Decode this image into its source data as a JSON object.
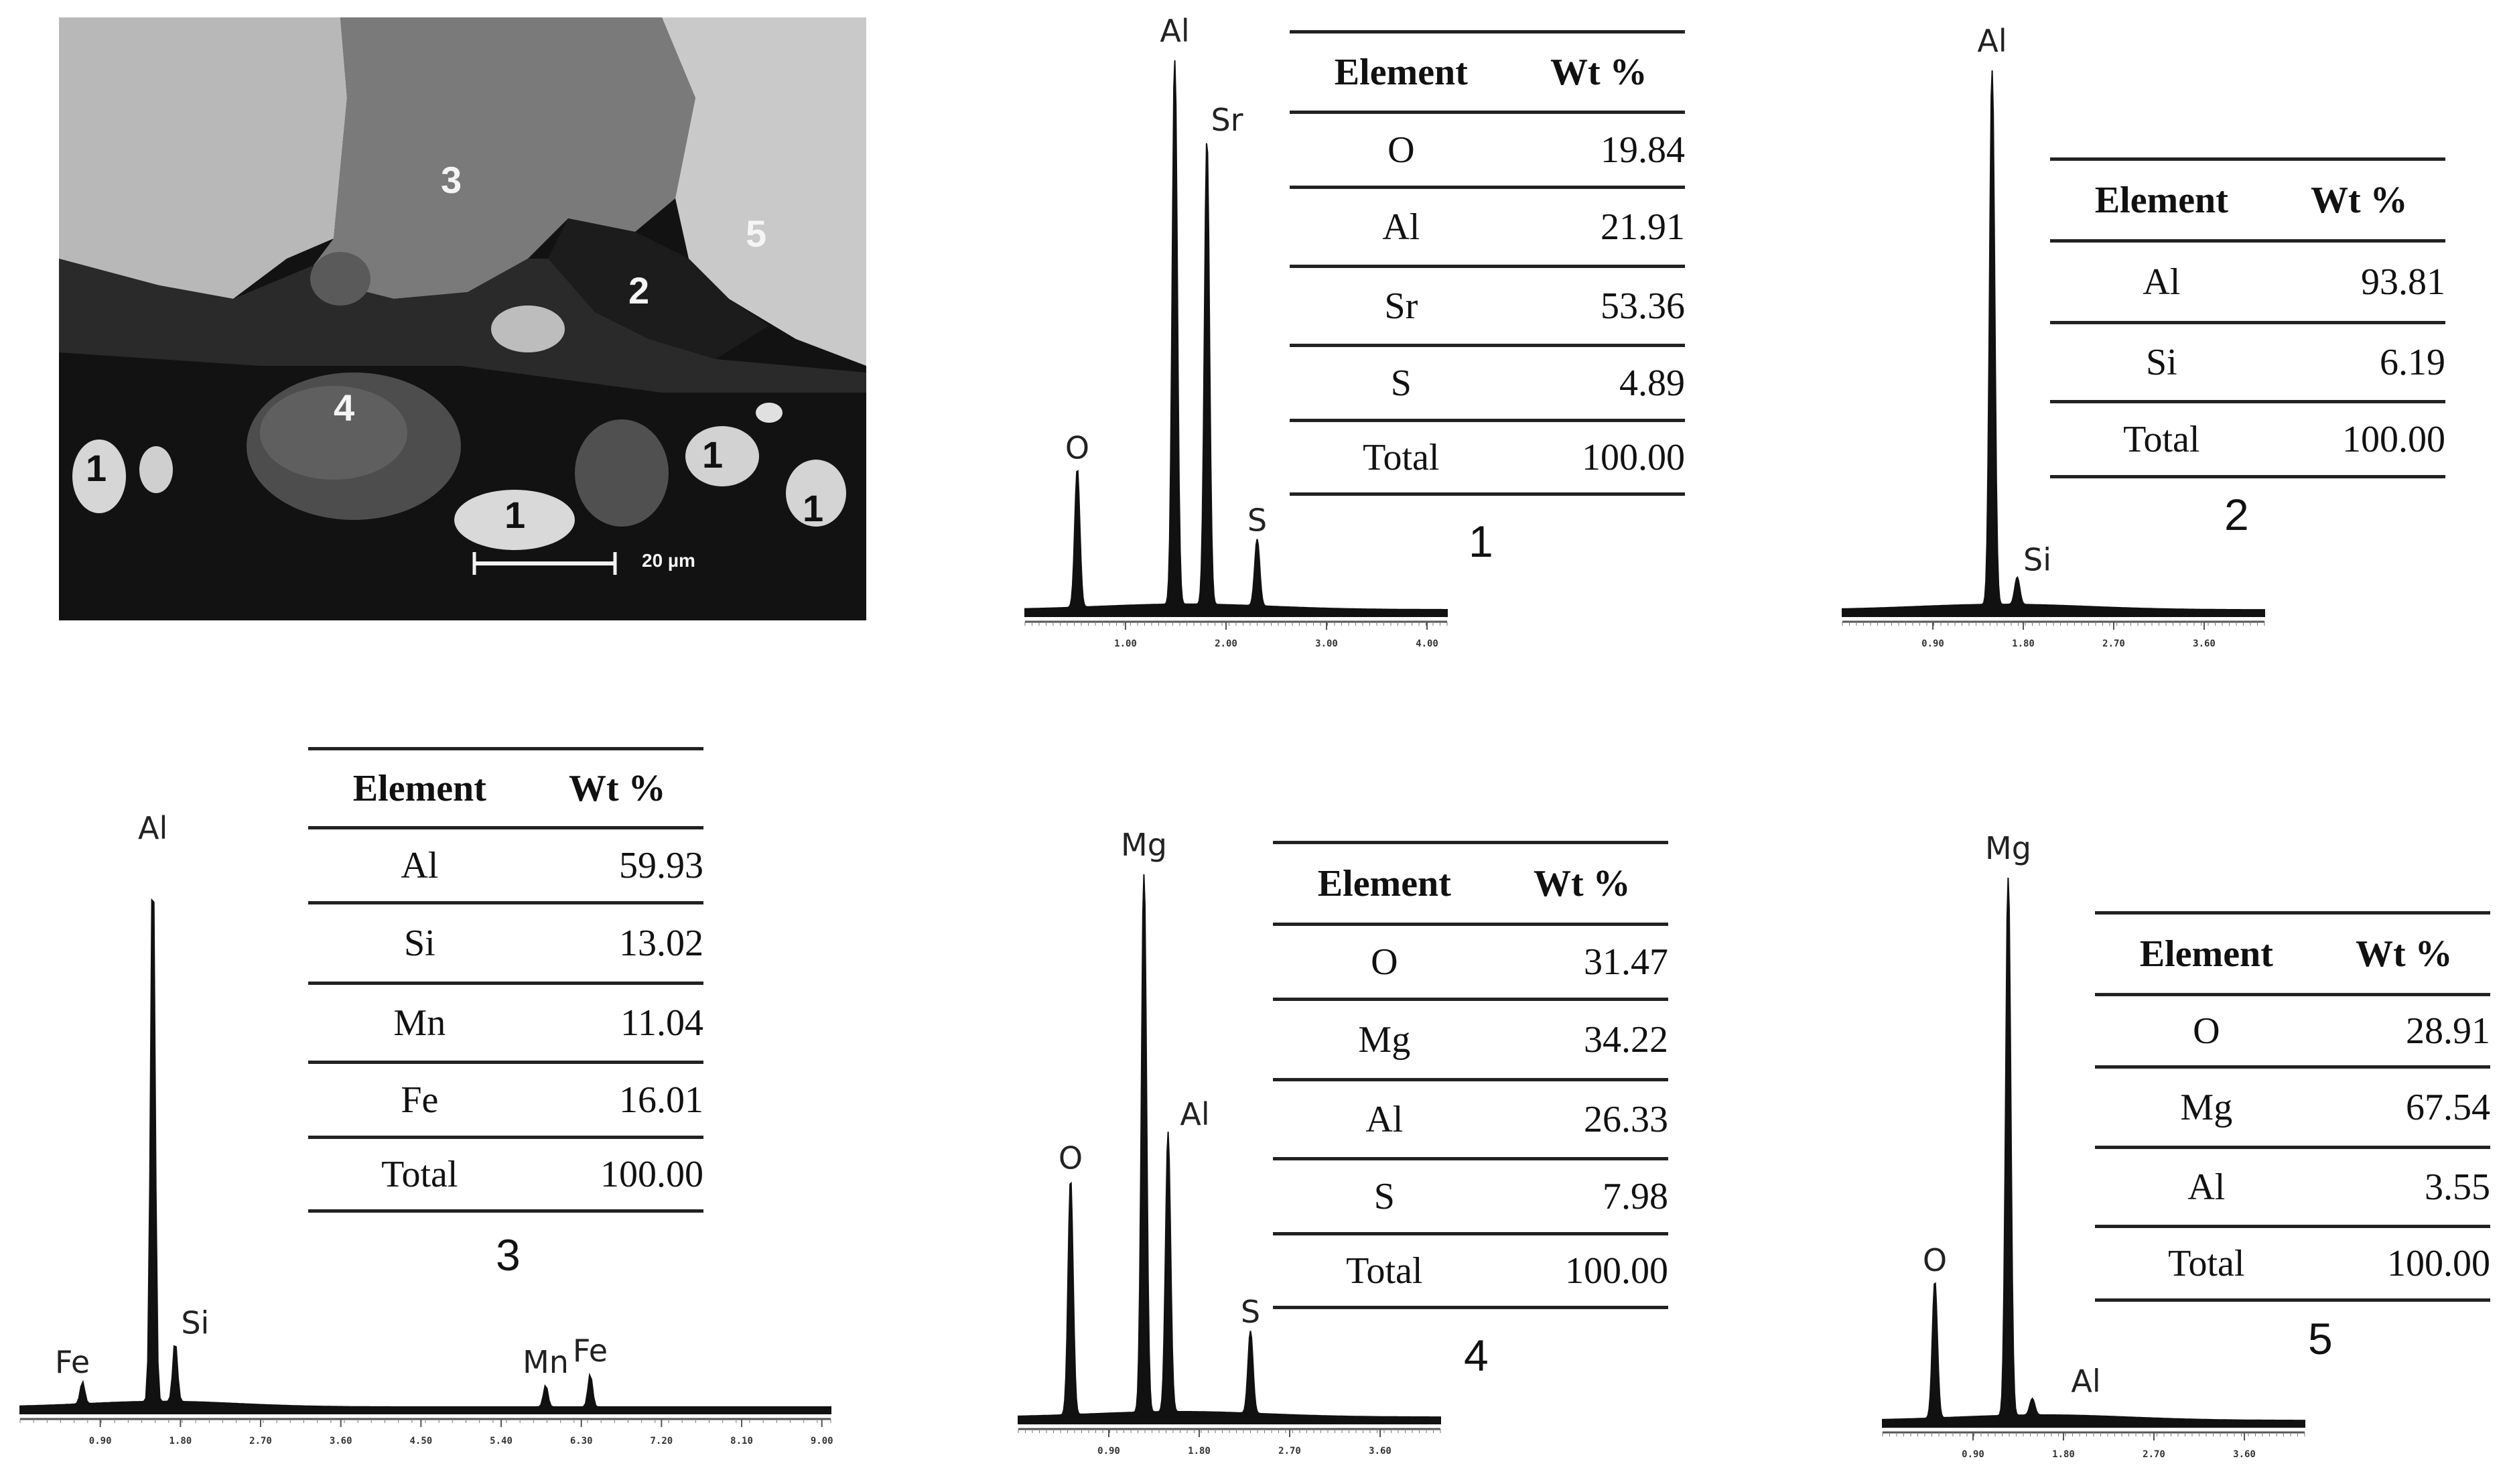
{
  "micrograph": {
    "markers": [
      "3",
      "5",
      "2",
      "4",
      "1",
      "1",
      "1",
      "1",
      "1"
    ],
    "scale_label": "20 µm"
  },
  "panels": [
    {
      "tag": "1",
      "table": {
        "headers": [
          "Element",
          "Wt %"
        ],
        "rows": [
          [
            "O",
            "19.84"
          ],
          [
            "Al",
            "21.91"
          ],
          [
            "Sr",
            "53.36"
          ],
          [
            "S",
            "4.89"
          ],
          [
            "Total",
            "100.00"
          ]
        ]
      }
    },
    {
      "tag": "2",
      "table": {
        "headers": [
          "Element",
          "Wt %"
        ],
        "rows": [
          [
            "Al",
            "93.81"
          ],
          [
            "Si",
            "6.19"
          ],
          [
            "Total",
            "100.00"
          ]
        ]
      }
    },
    {
      "tag": "3",
      "table": {
        "headers": [
          "Element",
          "Wt %"
        ],
        "rows": [
          [
            "Al",
            "59.93"
          ],
          [
            "Si",
            "13.02"
          ],
          [
            "Mn",
            "11.04"
          ],
          [
            "Fe",
            "16.01"
          ],
          [
            "Total",
            "100.00"
          ]
        ]
      }
    },
    {
      "tag": "4",
      "table": {
        "headers": [
          "Element",
          "Wt %"
        ],
        "rows": [
          [
            "O",
            "31.47"
          ],
          [
            "Mg",
            "34.22"
          ],
          [
            "Al",
            "26.33"
          ],
          [
            "S",
            "7.98"
          ],
          [
            "Total",
            "100.00"
          ]
        ]
      }
    },
    {
      "tag": "5",
      "table": {
        "headers": [
          "Element",
          "Wt %"
        ],
        "rows": [
          [
            "O",
            "28.91"
          ],
          [
            "Mg",
            "67.54"
          ],
          [
            "Al",
            "3.55"
          ],
          [
            "Total",
            "100.00"
          ]
        ]
      }
    }
  ],
  "chart_data": [
    {
      "type": "line",
      "panel": "1",
      "xlabel": "",
      "ylabel": "",
      "xlim": [
        0,
        4.2
      ],
      "ylim": [
        0,
        1
      ],
      "x_ticks": [
        "1.00",
        "2.00",
        "3.00",
        "4.00"
      ],
      "x_tick_values": [
        1.0,
        2.0,
        3.0,
        4.0
      ],
      "peaks": [
        {
          "label": "O",
          "x": 0.52,
          "y": 0.25
        },
        {
          "label": "Al",
          "x": 1.49,
          "y": 1.0
        },
        {
          "label": "Sr",
          "x": 1.81,
          "y": 0.84
        },
        {
          "label": "S",
          "x": 2.31,
          "y": 0.12
        }
      ]
    },
    {
      "type": "line",
      "panel": "2",
      "xlabel": "",
      "ylabel": "",
      "xlim": [
        0,
        4.2
      ],
      "ylim": [
        0,
        1
      ],
      "x_ticks": [
        "0.90",
        "1.80",
        "2.70",
        "3.60"
      ],
      "x_tick_values": [
        0.9,
        1.8,
        2.7,
        3.6
      ],
      "peaks": [
        {
          "label": "Al",
          "x": 1.49,
          "y": 1.0
        },
        {
          "label": "Si",
          "x": 1.74,
          "y": 0.05
        }
      ]
    },
    {
      "type": "line",
      "panel": "3",
      "xlabel": "",
      "ylabel": "",
      "xlim": [
        0,
        9.1
      ],
      "ylim": [
        0,
        1
      ],
      "x_ticks": [
        "0.90",
        "1.80",
        "2.70",
        "3.60",
        "4.50",
        "5.40",
        "6.30",
        "7.20",
        "8.10",
        "9.00"
      ],
      "x_tick_values": [
        0.9,
        1.8,
        2.7,
        3.6,
        4.5,
        5.4,
        6.3,
        7.2,
        8.1,
        9.0
      ],
      "peaks": [
        {
          "label": "Fe",
          "x": 0.7,
          "y": 0.04
        },
        {
          "label": "Al",
          "x": 1.49,
          "y": 1.0
        },
        {
          "label": "Si",
          "x": 1.74,
          "y": 0.11
        },
        {
          "label": "Mn",
          "x": 5.9,
          "y": 0.04
        },
        {
          "label": "Fe",
          "x": 6.4,
          "y": 0.06
        }
      ]
    },
    {
      "type": "line",
      "panel": "4",
      "xlabel": "",
      "ylabel": "",
      "xlim": [
        0,
        4.2
      ],
      "ylim": [
        0,
        1
      ],
      "x_ticks": [
        "0.90",
        "1.80",
        "2.70",
        "3.60"
      ],
      "x_tick_values": [
        0.9,
        1.8,
        2.7,
        3.6
      ],
      "peaks": [
        {
          "label": "O",
          "x": 0.52,
          "y": 0.43
        },
        {
          "label": "Mg",
          "x": 1.25,
          "y": 1.0
        },
        {
          "label": "Al",
          "x": 1.49,
          "y": 0.51
        },
        {
          "label": "S",
          "x": 2.31,
          "y": 0.15
        }
      ]
    },
    {
      "type": "line",
      "panel": "5",
      "xlabel": "",
      "ylabel": "",
      "xlim": [
        0,
        4.2
      ],
      "ylim": [
        0,
        1
      ],
      "x_ticks": [
        "0.90",
        "1.80",
        "2.70",
        "3.60"
      ],
      "x_tick_values": [
        0.9,
        1.8,
        2.7,
        3.6
      ],
      "peaks": [
        {
          "label": "O",
          "x": 0.52,
          "y": 0.25
        },
        {
          "label": "Mg",
          "x": 1.25,
          "y": 1.0
        },
        {
          "label": "Al",
          "x": 1.49,
          "y": 0.03
        }
      ]
    }
  ]
}
